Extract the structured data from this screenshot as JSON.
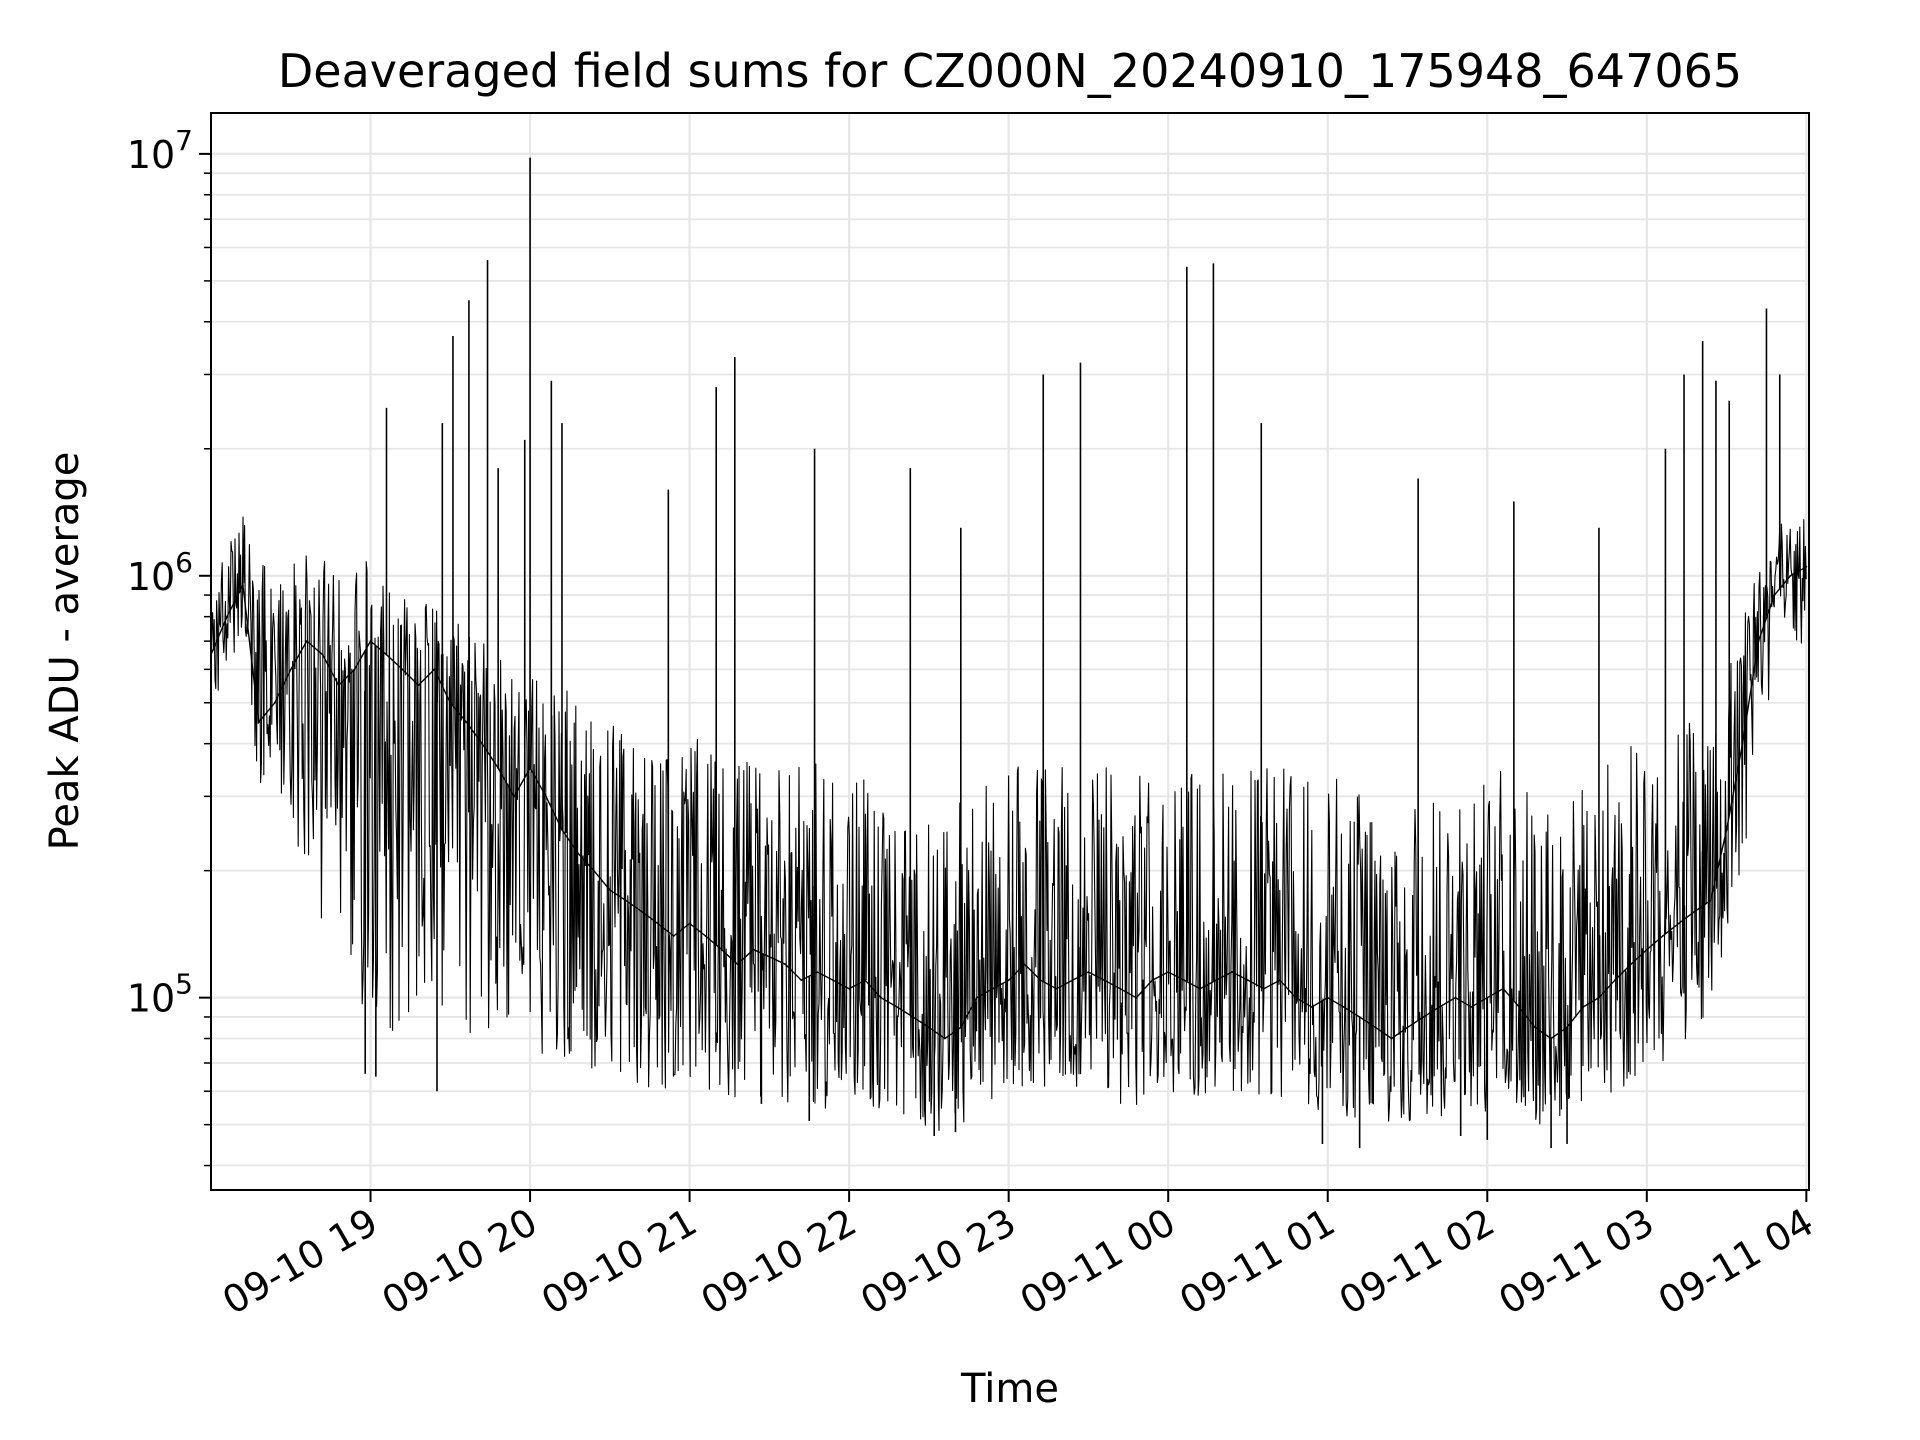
{
  "chart_data": {
    "type": "line",
    "title": "Deaveraged field sums for CZ000N_20240910_175948_647065",
    "xlabel": "Time",
    "ylabel": "Peak ADU - average",
    "yscale": "log",
    "grid": true,
    "legend": "none",
    "colors": {
      "line": "#000000",
      "grid": "#e6e6e6",
      "axes": "#000000",
      "background": "#ffffff"
    },
    "xlim": [
      "2024-09-10 18:00",
      "2024-09-11 04:01"
    ],
    "ylim": [
      35000,
      12500000
    ],
    "x_ticks": [
      {
        "value": "2024-09-10 19:00",
        "label": "09-10 19"
      },
      {
        "value": "2024-09-10 20:00",
        "label": "09-10 20"
      },
      {
        "value": "2024-09-10 21:00",
        "label": "09-10 21"
      },
      {
        "value": "2024-09-10 22:00",
        "label": "09-10 22"
      },
      {
        "value": "2024-09-10 23:00",
        "label": "09-10 23"
      },
      {
        "value": "2024-09-11 00:00",
        "label": "09-11 00"
      },
      {
        "value": "2024-09-11 01:00",
        "label": "09-11 01"
      },
      {
        "value": "2024-09-11 02:00",
        "label": "09-11 02"
      },
      {
        "value": "2024-09-11 03:00",
        "label": "09-11 03"
      },
      {
        "value": "2024-09-11 04:00",
        "label": "09-11 04"
      }
    ],
    "y_ticks": [
      {
        "value": 100000,
        "base": "10",
        "exp": "5"
      },
      {
        "value": 1000000,
        "base": "10",
        "exp": "6"
      },
      {
        "value": 10000000,
        "base": "10",
        "exp": "7"
      }
    ],
    "series": [
      {
        "x": [
          "2024-09-10 18:00",
          "2024-09-10 18:06",
          "2024-09-10 18:12",
          "2024-09-10 18:18",
          "2024-09-10 18:24",
          "2024-09-10 18:30",
          "2024-09-10 18:36",
          "2024-09-10 18:42",
          "2024-09-10 18:48",
          "2024-09-10 18:54",
          "2024-09-10 19:00",
          "2024-09-10 19:06",
          "2024-09-10 19:12",
          "2024-09-10 19:18",
          "2024-09-10 19:24",
          "2024-09-10 19:30",
          "2024-09-10 19:36",
          "2024-09-10 19:42",
          "2024-09-10 19:48",
          "2024-09-10 19:54",
          "2024-09-10 20:00",
          "2024-09-10 20:06",
          "2024-09-10 20:12",
          "2024-09-10 20:18",
          "2024-09-10 20:24",
          "2024-09-10 20:30",
          "2024-09-10 20:36",
          "2024-09-10 20:42",
          "2024-09-10 20:48",
          "2024-09-10 20:54",
          "2024-09-10 21:00",
          "2024-09-10 21:06",
          "2024-09-10 21:12",
          "2024-09-10 21:18",
          "2024-09-10 21:24",
          "2024-09-10 21:30",
          "2024-09-10 21:36",
          "2024-09-10 21:42",
          "2024-09-10 21:48",
          "2024-09-10 21:54",
          "2024-09-10 22:00",
          "2024-09-10 22:06",
          "2024-09-10 22:12",
          "2024-09-10 22:18",
          "2024-09-10 22:24",
          "2024-09-10 22:30",
          "2024-09-10 22:36",
          "2024-09-10 22:42",
          "2024-09-10 22:48",
          "2024-09-10 22:54",
          "2024-09-10 23:00",
          "2024-09-10 23:06",
          "2024-09-10 23:12",
          "2024-09-10 23:18",
          "2024-09-10 23:24",
          "2024-09-10 23:30",
          "2024-09-10 23:36",
          "2024-09-10 23:42",
          "2024-09-10 23:48",
          "2024-09-10 23:54",
          "2024-09-11 00:00",
          "2024-09-11 00:06",
          "2024-09-11 00:12",
          "2024-09-11 00:18",
          "2024-09-11 00:24",
          "2024-09-11 00:30",
          "2024-09-11 00:36",
          "2024-09-11 00:42",
          "2024-09-11 00:48",
          "2024-09-11 00:54",
          "2024-09-11 01:00",
          "2024-09-11 01:06",
          "2024-09-11 01:12",
          "2024-09-11 01:18",
          "2024-09-11 01:24",
          "2024-09-11 01:30",
          "2024-09-11 01:36",
          "2024-09-11 01:42",
          "2024-09-11 01:48",
          "2024-09-11 01:54",
          "2024-09-11 02:00",
          "2024-09-11 02:06",
          "2024-09-11 02:12",
          "2024-09-11 02:18",
          "2024-09-11 02:24",
          "2024-09-11 02:30",
          "2024-09-11 02:36",
          "2024-09-11 02:42",
          "2024-09-11 02:48",
          "2024-09-11 02:54",
          "2024-09-11 03:00",
          "2024-09-11 03:06",
          "2024-09-11 03:12",
          "2024-09-11 03:18",
          "2024-09-11 03:24",
          "2024-09-11 03:30",
          "2024-09-11 03:36",
          "2024-09-11 03:42",
          "2024-09-11 03:48",
          "2024-09-11 03:54",
          "2024-09-11 04:00"
        ],
        "y": [
          650000,
          800000,
          950000,
          450000,
          500000,
          600000,
          700000,
          650000,
          550000,
          600000,
          700000,
          650000,
          600000,
          550000,
          600000,
          500000,
          450000,
          400000,
          350000,
          300000,
          350000,
          300000,
          250000,
          220000,
          200000,
          180000,
          170000,
          160000,
          150000,
          140000,
          150000,
          140000,
          130000,
          120000,
          130000,
          125000,
          120000,
          110000,
          115000,
          110000,
          105000,
          110000,
          100000,
          95000,
          90000,
          85000,
          80000,
          85000,
          100000,
          105000,
          110000,
          120000,
          110000,
          105000,
          110000,
          115000,
          110000,
          105000,
          100000,
          110000,
          115000,
          110000,
          105000,
          110000,
          115000,
          110000,
          105000,
          110000,
          100000,
          95000,
          100000,
          95000,
          90000,
          85000,
          80000,
          85000,
          90000,
          95000,
          100000,
          95000,
          100000,
          105000,
          95000,
          85000,
          80000,
          85000,
          95000,
          100000,
          110000,
          120000,
          130000,
          140000,
          150000,
          160000,
          170000,
          250000,
          400000,
          700000,
          900000,
          1000000,
          1050000
        ],
        "upper": [
          900000,
          1200000,
          1400000,
          1100000,
          1000000,
          1100000,
          1200000,
          1100000,
          1000000,
          1050000,
          1100000,
          1000000,
          950000,
          900000,
          850000,
          800000,
          750000,
          700000,
          650000,
          600000,
          650000,
          600000,
          550000,
          500000,
          480000,
          450000,
          430000,
          420000,
          400000,
          380000,
          420000,
          400000,
          380000,
          370000,
          380000,
          370000,
          360000,
          350000,
          360000,
          350000,
          340000,
          330000,
          300000,
          280000,
          270000,
          260000,
          250000,
          300000,
          320000,
          340000,
          350000,
          380000,
          360000,
          350000,
          360000,
          370000,
          360000,
          350000,
          340000,
          360000,
          370000,
          360000,
          350000,
          360000,
          370000,
          360000,
          350000,
          360000,
          340000,
          330000,
          340000,
          330000,
          320000,
          300000,
          290000,
          300000,
          320000,
          330000,
          340000,
          330000,
          340000,
          350000,
          330000,
          300000,
          290000,
          300000,
          330000,
          350000,
          380000,
          400000,
          420000,
          440000,
          460000,
          480000,
          500000,
          600000,
          800000,
          1100000,
          1300000,
          1400000,
          1500000
        ],
        "lower": [
          450000,
          600000,
          700000,
          300000,
          350000,
          250000,
          200000,
          150000,
          120000,
          100000,
          90000,
          85000,
          80000,
          85000,
          90000,
          85000,
          80000,
          75000,
          80000,
          75000,
          78000,
          72000,
          70000,
          68000,
          66000,
          64000,
          62000,
          60000,
          62000,
          60000,
          62000,
          60000,
          58000,
          56000,
          58000,
          56000,
          55000,
          54000,
          55000,
          54000,
          53000,
          54000,
          52000,
          51000,
          50000,
          49000,
          48000,
          50000,
          54000,
          56000,
          58000,
          60000,
          58000,
          56000,
          58000,
          60000,
          58000,
          56000,
          55000,
          57000,
          60000,
          58000,
          56000,
          58000,
          60000,
          58000,
          56000,
          57000,
          53000,
          51000,
          52000,
          51000,
          50000,
          49000,
          48000,
          49000,
          50000,
          51000,
          53000,
          51000,
          53000,
          55000,
          52000,
          49000,
          48000,
          49000,
          52000,
          54000,
          58000,
          62000,
          66000,
          70000,
          74000,
          78000,
          82000,
          120000,
          200000,
          400000,
          550000,
          650000,
          700000
        ]
      }
    ],
    "spikes": [
      {
        "x": "2024-09-10 19:06",
        "y": 2500000
      },
      {
        "x": "2024-09-10 19:27",
        "y": 2300000
      },
      {
        "x": "2024-09-10 19:31",
        "y": 3700000
      },
      {
        "x": "2024-09-10 19:37",
        "y": 4500000
      },
      {
        "x": "2024-09-10 19:44",
        "y": 5600000
      },
      {
        "x": "2024-09-10 19:48",
        "y": 1800000
      },
      {
        "x": "2024-09-10 19:58",
        "y": 2100000
      },
      {
        "x": "2024-09-10 20:00",
        "y": 9800000
      },
      {
        "x": "2024-09-10 20:08",
        "y": 2900000
      },
      {
        "x": "2024-09-10 20:12",
        "y": 2300000
      },
      {
        "x": "2024-09-10 20:52",
        "y": 1600000
      },
      {
        "x": "2024-09-10 21:10",
        "y": 2800000
      },
      {
        "x": "2024-09-10 21:17",
        "y": 3300000
      },
      {
        "x": "2024-09-10 21:47",
        "y": 2000000
      },
      {
        "x": "2024-09-10 22:23",
        "y": 1800000
      },
      {
        "x": "2024-09-10 22:42",
        "y": 1300000
      },
      {
        "x": "2024-09-10 23:13",
        "y": 3000000
      },
      {
        "x": "2024-09-10 23:27",
        "y": 3200000
      },
      {
        "x": "2024-09-11 00:07",
        "y": 5400000
      },
      {
        "x": "2024-09-11 00:17",
        "y": 5500000
      },
      {
        "x": "2024-09-11 00:35",
        "y": 2300000
      },
      {
        "x": "2024-09-11 01:34",
        "y": 1700000
      },
      {
        "x": "2024-09-11 02:10",
        "y": 1500000
      },
      {
        "x": "2024-09-11 02:42",
        "y": 1300000
      },
      {
        "x": "2024-09-11 03:07",
        "y": 2000000
      },
      {
        "x": "2024-09-11 03:14",
        "y": 3000000
      },
      {
        "x": "2024-09-11 03:21",
        "y": 3600000
      },
      {
        "x": "2024-09-11 03:26",
        "y": 2900000
      },
      {
        "x": "2024-09-11 03:31",
        "y": 2600000
      },
      {
        "x": "2024-09-11 03:45",
        "y": 4300000
      },
      {
        "x": "2024-09-11 03:50",
        "y": 3000000
      }
    ],
    "dips": [
      {
        "x": "2024-09-10 18:58",
        "y": 66000
      },
      {
        "x": "2024-09-10 19:02",
        "y": 65000
      },
      {
        "x": "2024-09-10 19:25",
        "y": 60000
      },
      {
        "x": "2024-09-10 21:27",
        "y": 56000
      },
      {
        "x": "2024-09-10 21:45",
        "y": 51000
      },
      {
        "x": "2024-09-10 22:32",
        "y": 47000
      },
      {
        "x": "2024-09-10 22:40",
        "y": 48000
      },
      {
        "x": "2024-09-11 00:58",
        "y": 45000
      },
      {
        "x": "2024-09-11 01:12",
        "y": 44000
      },
      {
        "x": "2024-09-11 01:50",
        "y": 47000
      },
      {
        "x": "2024-09-11 02:00",
        "y": 46000
      },
      {
        "x": "2024-09-11 02:24",
        "y": 44000
      },
      {
        "x": "2024-09-11 02:30",
        "y": 45000
      }
    ]
  }
}
